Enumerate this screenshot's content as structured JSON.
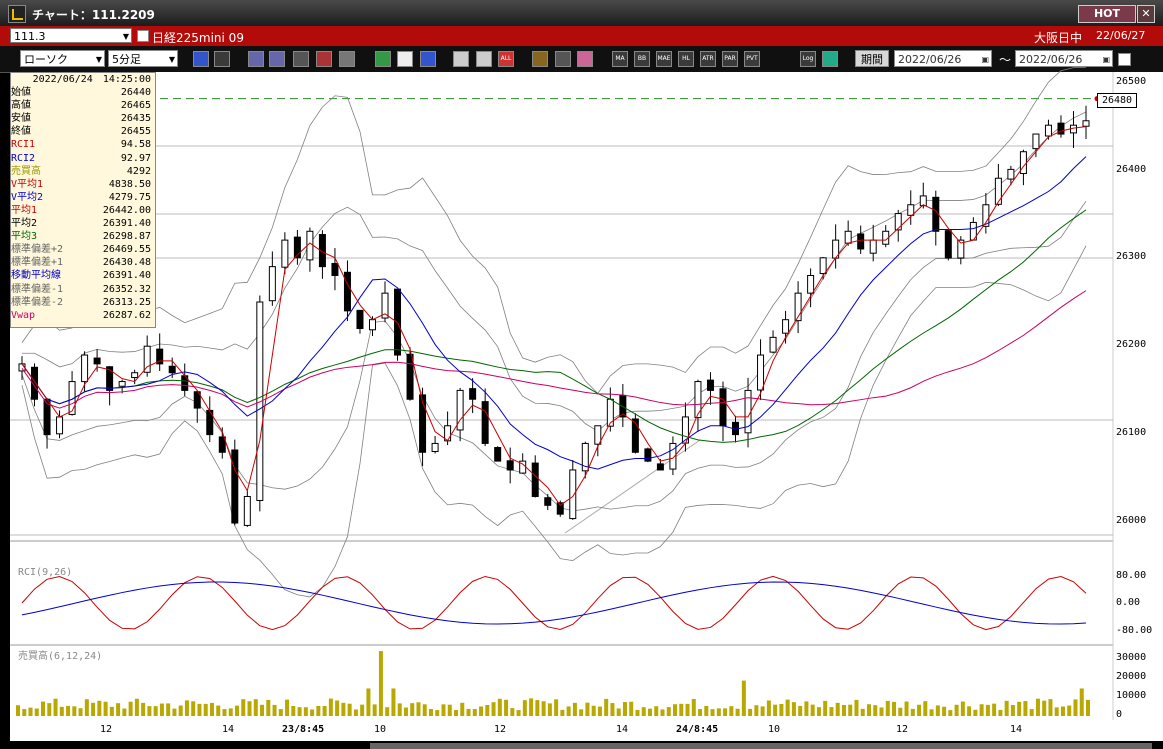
{
  "window": {
    "title": "チャート：111.2209",
    "hot": "HOT",
    "close": "✕"
  },
  "row2": {
    "code": "111.3",
    "name": "日経225mini 09",
    "market": "大阪日中",
    "date": "22/06/27"
  },
  "toolbar": {
    "chart_type": "ローソク",
    "interval": "5分足",
    "period_label": "期間",
    "from": "2022/06/26",
    "to": "2022/06/26",
    "buttons": [
      "MA",
      "BB",
      "MAE",
      "HL",
      "ATR",
      "PAR",
      "PVT",
      "Log"
    ]
  },
  "info": {
    "timestamp": "2022/06/24　14:25:00",
    "rows": [
      {
        "label": "始値",
        "value": "26440",
        "color": "#000000"
      },
      {
        "label": "高値",
        "value": "26465",
        "color": "#000000"
      },
      {
        "label": "安値",
        "value": "26435",
        "color": "#000000"
      },
      {
        "label": "終値",
        "value": "26455",
        "color": "#000000"
      },
      {
        "label": "RCI1",
        "value": "94.58",
        "color": "#cc0000"
      },
      {
        "label": "RCI2",
        "value": "92.97",
        "color": "#0000cc"
      },
      {
        "label": "売買高",
        "value": "4292",
        "color": "#999900"
      },
      {
        "label": "V平均1",
        "value": "4838.50",
        "color": "#cc0000"
      },
      {
        "label": "V平均2",
        "value": "4279.75",
        "color": "#0000cc"
      },
      {
        "label": "平均1",
        "value": "26442.00",
        "color": "#cc0000"
      },
      {
        "label": "平均2",
        "value": "26391.40",
        "color": "#000000"
      },
      {
        "label": "平均3",
        "value": "26298.87",
        "color": "#006600"
      },
      {
        "label": "標準偏差+2",
        "value": "26469.55",
        "color": "#666666"
      },
      {
        "label": "標準偏差+1",
        "value": "26430.48",
        "color": "#666666"
      },
      {
        "label": "移動平均線",
        "value": "26391.40",
        "color": "#0000cc"
      },
      {
        "label": "標準偏差-1",
        "value": "26352.32",
        "color": "#666666"
      },
      {
        "label": "標準偏差-2",
        "value": "26313.25",
        "color": "#666666"
      },
      {
        "label": "Vwap",
        "value": "26287.62",
        "color": "#cc0066"
      }
    ]
  },
  "price_axis": [
    "26500",
    "26400",
    "26300",
    "26200",
    "26100",
    "26000"
  ],
  "price_tag": "26480",
  "rci_panel": {
    "label": "RCI(9,26)",
    "ticks": [
      "80.00",
      "0.00",
      "-80.00"
    ]
  },
  "vol_panel": {
    "label": "売買高(6,12,24)",
    "ticks": [
      "30000",
      "20000",
      "10000",
      "0"
    ]
  },
  "x_axis": [
    {
      "label": "12",
      "bold": false
    },
    {
      "label": "14",
      "bold": false
    },
    {
      "label": "23/8:45",
      "bold": true
    },
    {
      "label": "10",
      "bold": false
    },
    {
      "label": "12",
      "bold": false
    },
    {
      "label": "14",
      "bold": false
    },
    {
      "label": "24/8:45",
      "bold": true
    },
    {
      "label": "10",
      "bold": false
    },
    {
      "label": "12",
      "bold": false
    },
    {
      "label": "14",
      "bold": false
    }
  ],
  "colors": {
    "titlebar": "#2a2a2a",
    "code_bar": "#b30a0a",
    "ma_short": "#cc0000",
    "ma_mid": "#0000cc",
    "ma_long": "#006600",
    "vwap": "#cc0066",
    "bands": "#808080",
    "candle": "#000000",
    "volume": "#b8a800"
  },
  "chart_data": {
    "type": "candlestick",
    "interval": "5分足",
    "symbol": "日経225mini 09",
    "ylim": [
      25970,
      26510
    ],
    "close_series": [
      26180,
      26140,
      26100,
      26120,
      26160,
      26190,
      26180,
      26150,
      26160,
      26170,
      26200,
      26180,
      26170,
      26150,
      26130,
      26100,
      26080,
      26000,
      26030,
      26250,
      26290,
      26320,
      26300,
      26330,
      26290,
      26280,
      26240,
      26220,
      26230,
      26260,
      26190,
      26140,
      26080,
      26090,
      26110,
      26150,
      26140,
      26090,
      26070,
      26060,
      26070,
      26030,
      26020,
      26010,
      26060,
      26090,
      26110,
      26140,
      26120,
      26080,
      26070,
      26060,
      26090,
      26120,
      26160,
      26150,
      26110,
      26100,
      26150,
      26190,
      26210,
      26230,
      26260,
      26280,
      26300,
      26320,
      26330,
      26310,
      26320,
      26330,
      26350,
      26360,
      26370,
      26330,
      26300,
      26320,
      26340,
      26360,
      26390,
      26400,
      26420,
      26440,
      26450,
      26440,
      26450,
      26455
    ],
    "current_price": 26480
  }
}
